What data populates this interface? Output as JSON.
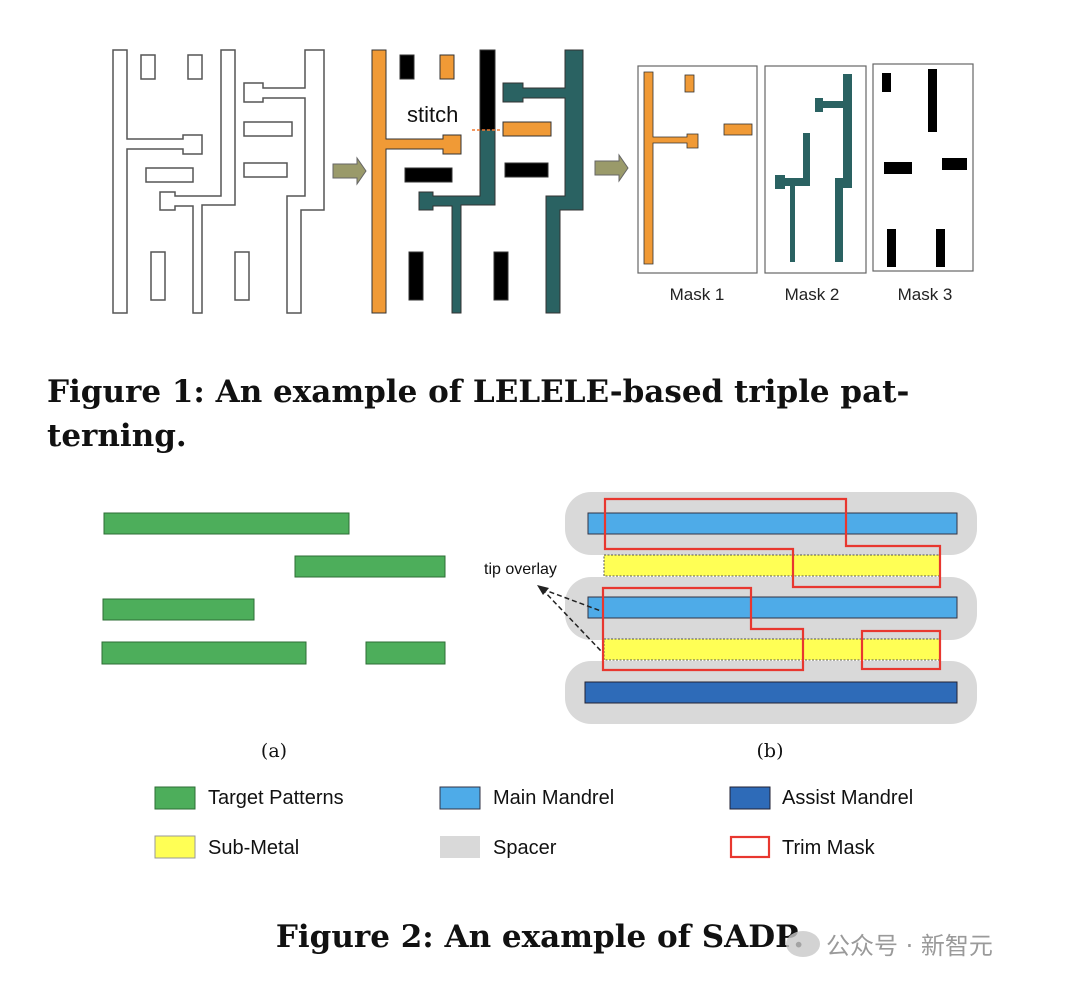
{
  "figure1": {
    "stitch_label": "stitch",
    "masks": [
      "Mask 1",
      "Mask 2",
      "Mask 3"
    ],
    "caption_line1": "Figure 1: An example of LELELE-based triple pat-",
    "caption_line2": "terning.",
    "colors": {
      "mask1": "#f09a36",
      "mask2": "#2a6262",
      "mask3": "#000000",
      "arrow": "#9a9a6a"
    }
  },
  "figure2": {
    "tip_overlay_label": "tip overlay",
    "sub_a": "(a)",
    "sub_b": "(b)",
    "legend": [
      {
        "label": "Target Patterns",
        "color": "#4dae5b"
      },
      {
        "label": "Main Mandrel",
        "color": "#4eabe8"
      },
      {
        "label": "Assist Mandrel",
        "color": "#2e6bb8"
      },
      {
        "label": "Sub-Metal",
        "color": "#ffff55"
      },
      {
        "label": "Spacer",
        "color": "#d9d9d9"
      },
      {
        "label": "Trim Mask",
        "color": "#e8372f"
      }
    ],
    "caption": "Figure 2: An example of SADP."
  },
  "watermark": "公众号 · 新智元"
}
